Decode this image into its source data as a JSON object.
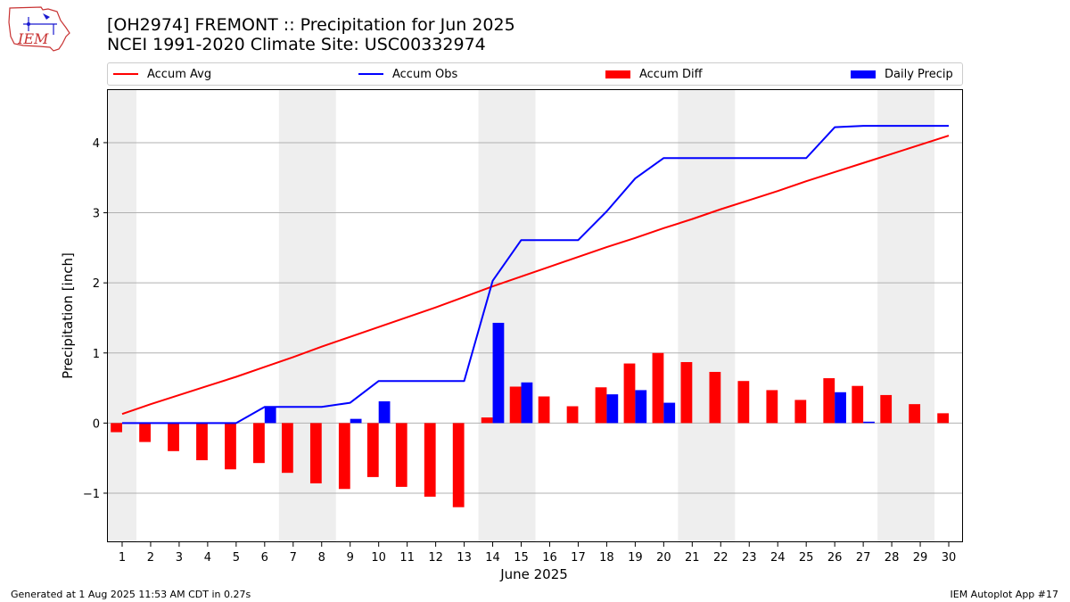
{
  "header": {
    "title_line1": "[OH2974] FREMONT :: Precipitation for Jun 2025",
    "title_line2": "NCEI 1991-2020 Climate Site: USC00332974"
  },
  "logo": {
    "text": "IEM"
  },
  "footer": {
    "left": "Generated at 1 Aug 2025 11:53 AM CDT in 0.27s",
    "right": "IEM Autoplot App #17"
  },
  "colors": {
    "accum_avg": "#ff0000",
    "accum_obs": "#0000ff",
    "accum_diff": "#ff0000",
    "daily_precip": "#0000ff",
    "weekend_shade": "#eeeeee",
    "grid": "#b0b0b0"
  },
  "chart_data": {
    "type": "bar",
    "xlabel": "June 2025",
    "ylabel": "Precipitation [inch]",
    "ylim": [
      -1.7,
      4.75
    ],
    "xlim": [
      0.5,
      30.5
    ],
    "yticks": [
      -1,
      0,
      1,
      2,
      3,
      4
    ],
    "ytick_labels": [
      "−1",
      "0",
      "1",
      "2",
      "3",
      "4"
    ],
    "grid": "horizontal",
    "legend_position": "top",
    "x": [
      1,
      2,
      3,
      4,
      5,
      6,
      7,
      8,
      9,
      10,
      11,
      12,
      13,
      14,
      15,
      16,
      17,
      18,
      19,
      20,
      21,
      22,
      23,
      24,
      25,
      26,
      27,
      28,
      29,
      30
    ],
    "shaded_days": [
      [
        0.5,
        1.5
      ],
      [
        6.5,
        8.5
      ],
      [
        13.5,
        15.5
      ],
      [
        20.5,
        22.5
      ],
      [
        27.5,
        29.5
      ]
    ],
    "series": [
      {
        "name": "Accum Avg",
        "kind": "line",
        "values": [
          0.13,
          0.27,
          0.4,
          0.53,
          0.66,
          0.8,
          0.94,
          1.09,
          1.23,
          1.37,
          1.51,
          1.65,
          1.8,
          1.95,
          2.09,
          2.23,
          2.37,
          2.51,
          2.64,
          2.78,
          2.91,
          3.05,
          3.18,
          3.31,
          3.45,
          3.58,
          3.71,
          3.84,
          3.97,
          4.1
        ]
      },
      {
        "name": "Accum Obs",
        "kind": "line",
        "values": [
          0,
          0,
          0,
          0,
          0,
          0.23,
          0.23,
          0.23,
          0.29,
          0.6,
          0.6,
          0.6,
          0.6,
          2.03,
          2.61,
          2.61,
          2.61,
          3.02,
          3.49,
          3.78,
          3.78,
          3.78,
          3.78,
          3.78,
          3.78,
          4.22,
          4.24,
          4.24,
          4.24,
          4.24
        ]
      },
      {
        "name": "Accum Diff",
        "kind": "bar",
        "values": [
          -0.13,
          -0.27,
          -0.4,
          -0.53,
          -0.66,
          -0.57,
          -0.71,
          -0.86,
          -0.94,
          -0.77,
          -0.91,
          -1.05,
          -1.2,
          0.08,
          0.52,
          0.38,
          0.24,
          0.51,
          0.85,
          1.0,
          0.87,
          0.73,
          0.6,
          0.47,
          0.33,
          0.64,
          0.53,
          0.4,
          0.27,
          0.14
        ]
      },
      {
        "name": "Daily Precip",
        "kind": "bar",
        "values": [
          0,
          0,
          0,
          0,
          0,
          0.23,
          0,
          0,
          0.06,
          0.31,
          0,
          0,
          0,
          1.43,
          0.58,
          0,
          0,
          0.41,
          0.47,
          0.29,
          0,
          0,
          0,
          0,
          0,
          0.44,
          0.02,
          0,
          0,
          0
        ]
      }
    ]
  }
}
